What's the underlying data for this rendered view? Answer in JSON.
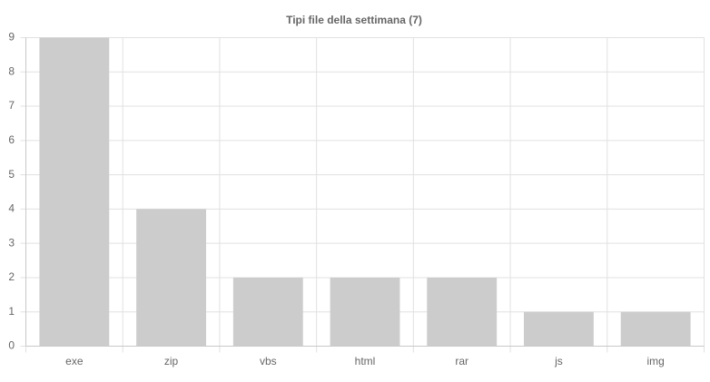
{
  "chart_data": {
    "type": "bar",
    "title": "Tipi file della settimana (7)",
    "categories": [
      "exe",
      "zip",
      "vbs",
      "html",
      "rar",
      "js",
      "img"
    ],
    "values": [
      9,
      4,
      2,
      2,
      2,
      1,
      1
    ],
    "color": "#cdcccd",
    "ylim": [
      0,
      9
    ],
    "yticks": [
      0,
      1,
      2,
      3,
      4,
      5,
      6,
      7,
      8,
      9
    ],
    "grid": true
  }
}
